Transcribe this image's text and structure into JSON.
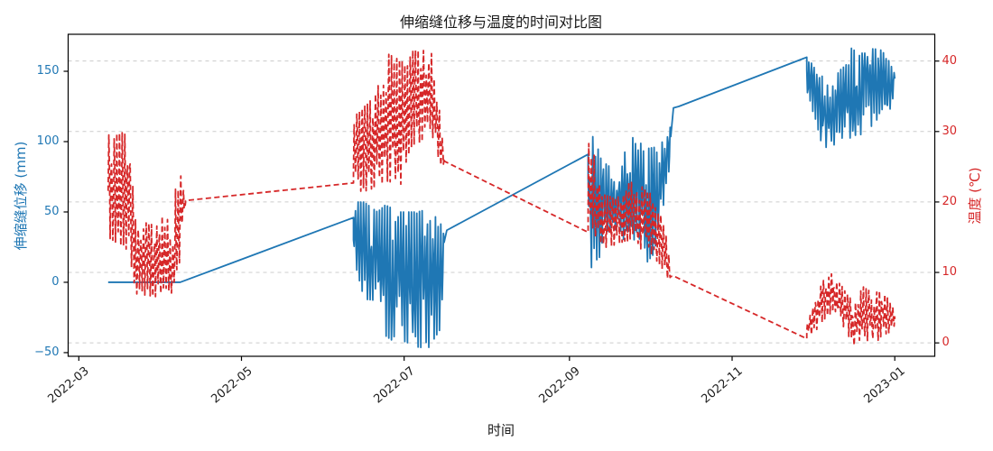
{
  "chart_data": {
    "type": "line",
    "title": "伸缩缝位移与温度的时间对比图",
    "xlabel": "时间",
    "grid": {
      "show": true,
      "axis": "y",
      "style": "dashed",
      "color": "#cccccc"
    },
    "x_axis": {
      "range": [
        "2022-02-25",
        "2023-01-16"
      ],
      "ticks": [
        {
          "label": "2022-03",
          "date": "2022-03-01"
        },
        {
          "label": "2022-05",
          "date": "2022-05-01"
        },
        {
          "label": "2022-07",
          "date": "2022-07-01"
        },
        {
          "label": "2022-09",
          "date": "2022-09-01"
        },
        {
          "label": "2022-11",
          "date": "2022-11-01"
        },
        {
          "label": "2023-01",
          "date": "2023-01-01"
        }
      ]
    },
    "y_axis_left": {
      "label": "伸缩缝位移 (mm)",
      "color": "#1f77b4",
      "ticks": [
        -50,
        0,
        50,
        100,
        150
      ],
      "range": [
        -52.6,
        176.3
      ]
    },
    "y_axis_right": {
      "label": "温度 (℃)",
      "color": "#d62728",
      "ticks": [
        0,
        10,
        20,
        30,
        40
      ],
      "range": [
        -1.9,
        43.8
      ]
    },
    "series": [
      {
        "name": "伸缩缝位移",
        "unit": "mm",
        "axis": "left",
        "color": "#1f77b4",
        "style": "solid",
        "daily_phase": -1,
        "segments": [
          {
            "kind": "line",
            "points": [
              [
                "2022-03-12",
                0
              ],
              [
                "2022-04-08",
                0
              ]
            ]
          },
          {
            "kind": "line",
            "points": [
              [
                "2022-04-08",
                0
              ],
              [
                "2022-06-12",
                46
              ]
            ]
          },
          {
            "kind": "noisy",
            "envelope": [
              [
                "2022-06-12",
                18,
                57
              ],
              [
                "2022-06-16",
                -12,
                57
              ],
              [
                "2022-06-21",
                -13,
                50
              ],
              [
                "2022-06-24",
                -38,
                55
              ],
              [
                "2022-06-27",
                -42,
                52
              ],
              [
                "2022-06-29",
                -15,
                50
              ],
              [
                "2022-07-01",
                -42,
                50
              ],
              [
                "2022-07-06",
                -46,
                50
              ],
              [
                "2022-07-10",
                -47,
                52
              ],
              [
                "2022-07-13",
                -38,
                46
              ],
              [
                "2022-07-15",
                -32,
                42
              ],
              [
                "2022-07-16",
                18,
                38
              ]
            ]
          },
          {
            "kind": "line",
            "points": [
              [
                "2022-07-17",
                37
              ],
              [
                "2022-09-08",
                91
              ]
            ]
          },
          {
            "kind": "noisy",
            "envelope": [
              [
                "2022-09-08",
                58,
                92
              ],
              [
                "2022-09-09",
                10,
                105
              ],
              [
                "2022-09-12",
                16,
                99
              ],
              [
                "2022-09-15",
                36,
                84
              ],
              [
                "2022-09-20",
                38,
                75
              ],
              [
                "2022-09-23",
                20,
                105
              ],
              [
                "2022-09-27",
                24,
                100
              ],
              [
                "2022-09-30",
                14,
                95
              ],
              [
                "2022-10-03",
                21,
                96
              ],
              [
                "2022-10-06",
                50,
                100
              ],
              [
                "2022-10-09",
                88,
                112
              ]
            ]
          },
          {
            "kind": "line",
            "points": [
              [
                "2022-10-10",
                124
              ],
              [
                "2022-10-12",
                125
              ],
              [
                "2022-11-29",
                160
              ]
            ]
          },
          {
            "kind": "noisy",
            "envelope": [
              [
                "2022-11-29",
                132,
                161
              ],
              [
                "2022-12-02",
                118,
                152
              ],
              [
                "2022-12-05",
                95,
                146
              ],
              [
                "2022-12-08",
                96,
                136
              ],
              [
                "2022-12-11",
                100,
                150
              ],
              [
                "2022-12-14",
                106,
                155
              ],
              [
                "2022-12-16",
                98,
                168
              ],
              [
                "2022-12-18",
                95,
                160
              ],
              [
                "2022-12-21",
                118,
                165
              ],
              [
                "2022-12-24",
                108,
                166
              ],
              [
                "2022-12-27",
                124,
                165
              ],
              [
                "2022-12-29",
                114,
                160
              ],
              [
                "2023-01-01",
                136,
                150
              ]
            ]
          }
        ]
      },
      {
        "name": "温度",
        "unit": "℃",
        "axis": "right",
        "color": "#d62728",
        "style": "dashed",
        "daily_phase": 1,
        "segments": [
          {
            "kind": "noisy",
            "envelope": [
              [
                "2022-03-12",
                15,
                29.5
              ],
              [
                "2022-03-20",
                13,
                30
              ],
              [
                "2022-03-22",
                7,
                17.5
              ],
              [
                "2022-03-31",
                6.5,
                16.5
              ],
              [
                "2022-04-02",
                8,
                20
              ],
              [
                "2022-04-05",
                7,
                14
              ],
              [
                "2022-04-07",
                8,
                26.5
              ],
              [
                "2022-04-09",
                17,
                22
              ],
              [
                "2022-04-10",
                19.5,
                20.5
              ]
            ]
          },
          {
            "kind": "line",
            "points": [
              [
                "2022-04-10",
                20.2
              ],
              [
                "2022-06-12",
                22.7
              ]
            ]
          },
          {
            "kind": "noisy",
            "envelope": [
              [
                "2022-06-12",
                21,
                32
              ],
              [
                "2022-06-20",
                22,
                35
              ],
              [
                "2022-06-25",
                23,
                41
              ],
              [
                "2022-06-30",
                22,
                40
              ],
              [
                "2022-07-02",
                26,
                39
              ],
              [
                "2022-07-04",
                28,
                41.5
              ],
              [
                "2022-07-11",
                29,
                41.5
              ],
              [
                "2022-07-13",
                27,
                38
              ],
              [
                "2022-07-15",
                25,
                30
              ],
              [
                "2022-07-16",
                25.5,
                26.5
              ]
            ]
          },
          {
            "kind": "line",
            "points": [
              [
                "2022-07-16",
                25.8
              ],
              [
                "2022-09-08",
                15.7
              ]
            ]
          },
          {
            "kind": "noisy",
            "envelope": [
              [
                "2022-09-08",
                16,
                28.5
              ],
              [
                "2022-09-11",
                15,
                26
              ],
              [
                "2022-09-14",
                13.5,
                21
              ],
              [
                "2022-09-19",
                14,
                20.5
              ],
              [
                "2022-09-22",
                14.5,
                23
              ],
              [
                "2022-09-27",
                13.5,
                22.5
              ],
              [
                "2022-10-02",
                12.5,
                21
              ],
              [
                "2022-10-05",
                11,
                18.5
              ],
              [
                "2022-10-08",
                9,
                14
              ],
              [
                "2022-10-09",
                9,
                10.5
              ]
            ]
          },
          {
            "kind": "line",
            "points": [
              [
                "2022-10-10",
                9.5
              ],
              [
                "2022-11-29",
                0.6
              ]
            ]
          },
          {
            "kind": "noisy",
            "envelope": [
              [
                "2022-11-29",
                0.5,
                2.5
              ],
              [
                "2022-12-03",
                2,
                7
              ],
              [
                "2022-12-07",
                4,
                10.3
              ],
              [
                "2022-12-10",
                3.5,
                9.5
              ],
              [
                "2022-12-13",
                2,
                7.5
              ],
              [
                "2022-12-17",
                -0.5,
                5.5
              ],
              [
                "2022-12-20",
                1,
                8
              ],
              [
                "2022-12-24",
                -0.5,
                7
              ],
              [
                "2022-12-27",
                1,
                7.5
              ],
              [
                "2022-12-30",
                1.5,
                6
              ],
              [
                "2023-01-01",
                2.5,
                4.5
              ]
            ]
          }
        ]
      }
    ]
  },
  "colors": {
    "spine": "#000000",
    "background": "#ffffff",
    "grid": "#cccccc"
  }
}
